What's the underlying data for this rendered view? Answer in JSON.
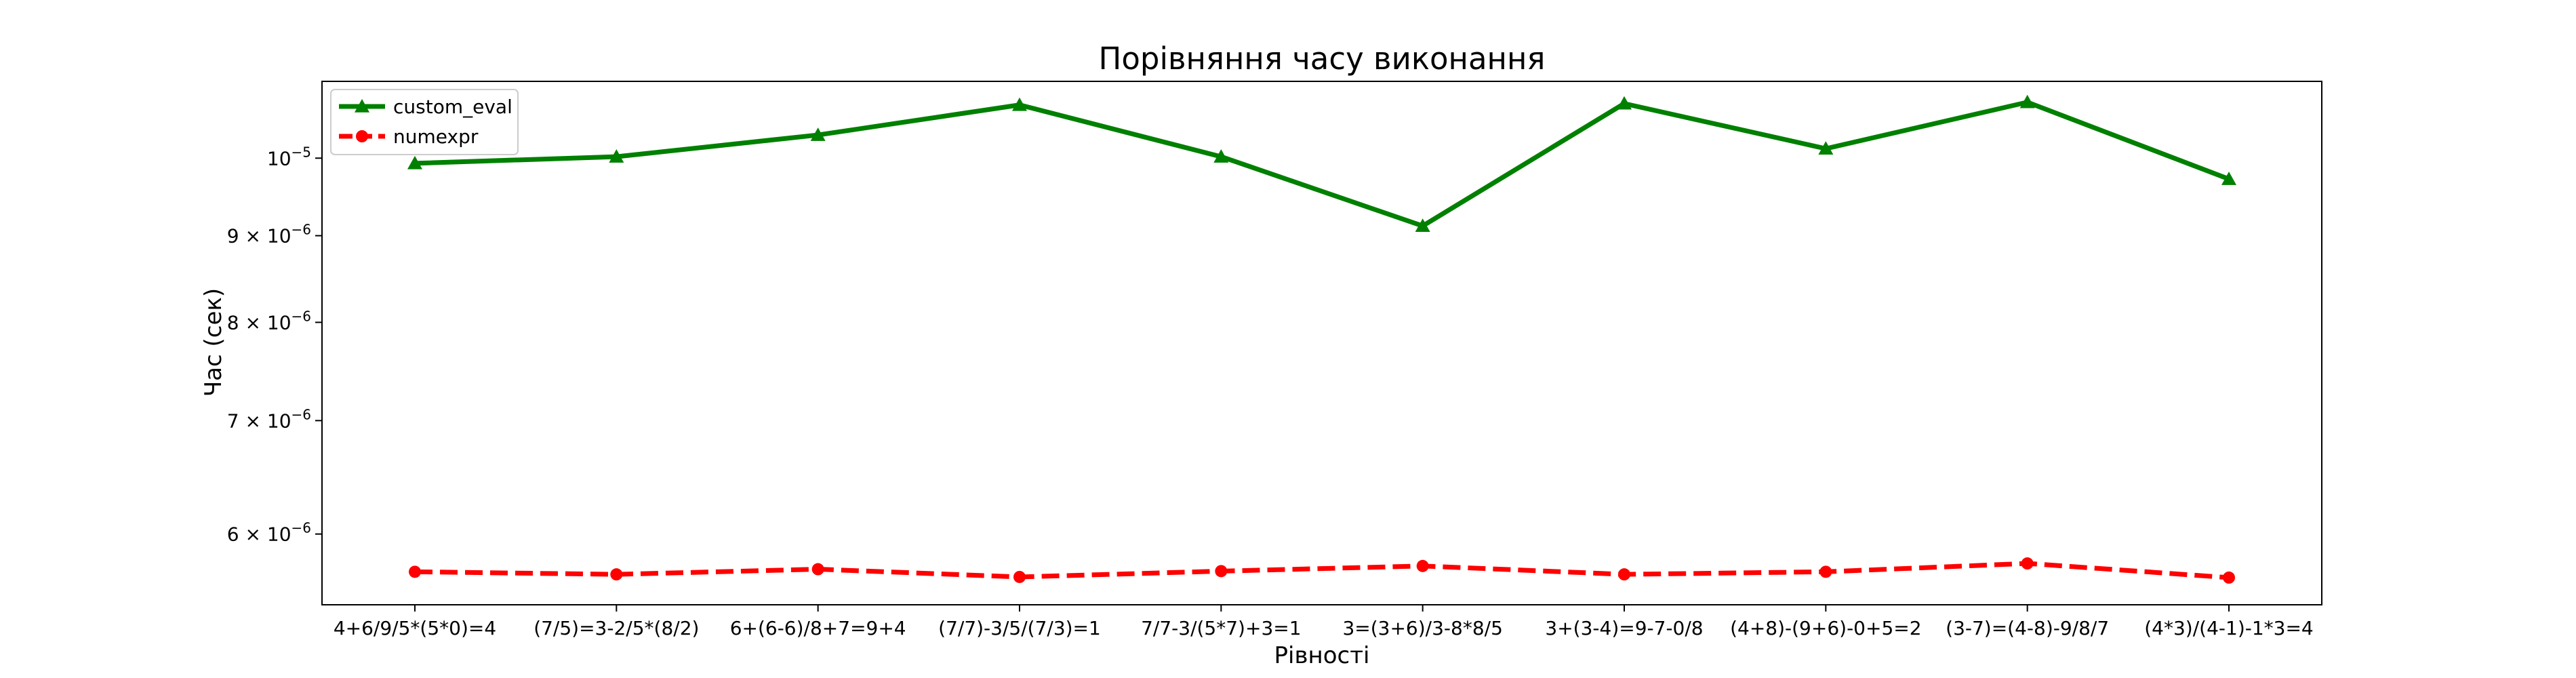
{
  "chart_data": {
    "type": "line",
    "title": "Порівняння часу виконання",
    "xlabel": "Рівності",
    "ylabel": "Час (сек)",
    "y_scale": "log",
    "ylim": [
      5.45e-06,
      1.11e-05
    ],
    "grid": false,
    "legend_position": "upper-left",
    "categories": [
      "4+6/9/5*(5*0)=4",
      "(7/5)=3-2/5*(8/2)",
      "6+(6-6)/8+7=9+4",
      "(7/7)-3/5/(7/3)=1",
      "7/7-3/(5*7)+3=1",
      "3=(3+6)/3-8*8/5",
      "3+(3-4)=9-7-0/8",
      "(4+8)-(9+6)-0+5=2",
      "(3-7)=(4-8)-9/8/7",
      "(4*3)/(4-1)-1*3=4"
    ],
    "y_ticks": [
      {
        "value": 6e-06,
        "mantissa": "6",
        "exp": "−6"
      },
      {
        "value": 7e-06,
        "mantissa": "7",
        "exp": "−6"
      },
      {
        "value": 8e-06,
        "mantissa": "8",
        "exp": "−6"
      },
      {
        "value": 9e-06,
        "mantissa": "9",
        "exp": "−6"
      },
      {
        "value": 1e-05,
        "mantissa": "",
        "exp": "−5"
      }
    ],
    "series": [
      {
        "name": "custom_eval",
        "color": "#008000",
        "line_style": "solid",
        "marker": "triangle",
        "values": [
          9.93e-06,
          1.002e-05,
          1.032e-05,
          1.075e-05,
          1.002e-05,
          9.12e-06,
          1.077e-05,
          1.013e-05,
          1.079e-05,
          9.72e-06
        ]
      },
      {
        "name": "numexpr",
        "color": "#ff0000",
        "line_style": "dashed",
        "marker": "circle",
        "values": [
          5.7e-06,
          5.68e-06,
          5.72e-06,
          5.66e-06,
          5.705e-06,
          5.745e-06,
          5.68e-06,
          5.7e-06,
          5.765e-06,
          5.655e-06
        ]
      }
    ]
  }
}
